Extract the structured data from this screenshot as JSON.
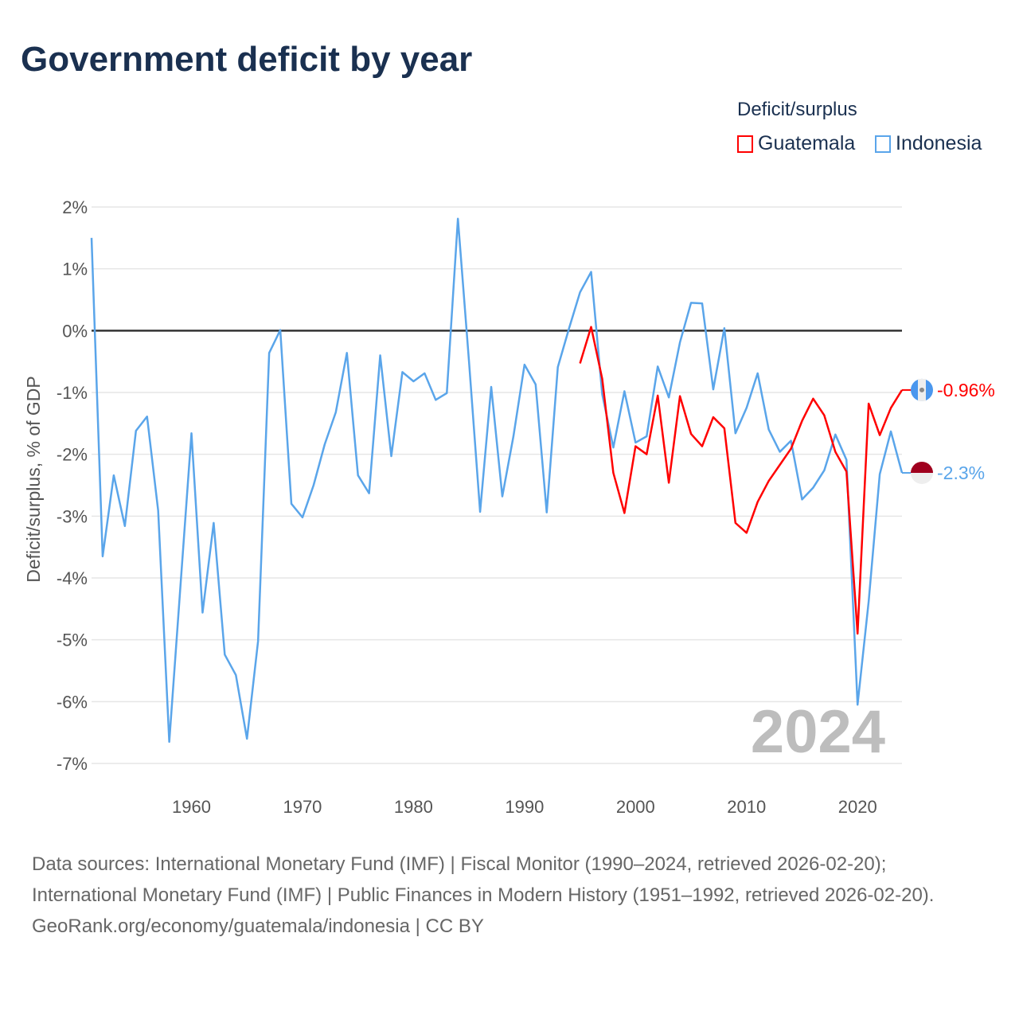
{
  "title": "Government deficit by year",
  "legend": {
    "title": "Deficit/surplus"
  },
  "year_watermark": "2024",
  "sources": "Data sources: International Monetary Fund (IMF) | Fiscal Monitor (1990–2024, retrieved 2026-02-20); International Monetary Fund (IMF) | Public Finances in Modern History (1951–1992, retrieved 2026-02-20).",
  "credit": "GeoRank.org/economy/guatemala/indonesia | CC BY",
  "chart_data": {
    "type": "line",
    "title": "Government deficit by year",
    "ylabel": "Deficit/surplus, % of GDP",
    "xlabel": "",
    "xlim": [
      1951,
      2024
    ],
    "ylim": [
      -7,
      2
    ],
    "xticks": [
      1960,
      1970,
      1980,
      1990,
      2000,
      2010,
      2020
    ],
    "yticks": [
      2,
      1,
      0,
      -1,
      -2,
      -3,
      -4,
      -5,
      -6,
      -7
    ],
    "ytick_labels": [
      "2%",
      "1%",
      "0%",
      "-1%",
      "-2%",
      "-3%",
      "-4%",
      "-5%",
      "-6%",
      "-7%"
    ],
    "legend_position": "top-right",
    "grid": true,
    "series": [
      {
        "name": "Guatemala",
        "color": "#ff0000",
        "end_label": "-0.96%",
        "start_year": 1995,
        "values": [
          -0.53,
          0.06,
          -0.78,
          -2.3,
          -2.95,
          -1.87,
          -2.0,
          -1.05,
          -2.46,
          -1.06,
          -1.67,
          -1.87,
          -1.4,
          -1.58,
          -3.11,
          -3.27,
          -2.77,
          -2.43,
          -2.17,
          -1.91,
          -1.46,
          -1.1,
          -1.37,
          -1.96,
          -2.28,
          -4.9,
          -1.18,
          -1.69,
          -1.25,
          -0.96
        ]
      },
      {
        "name": "Indonesia",
        "color": "#5aa5ea",
        "end_label": "-2.3%",
        "start_year": 1951,
        "values": [
          1.5,
          -3.65,
          -2.34,
          -3.16,
          -1.62,
          -1.39,
          -2.91,
          -6.65,
          -4.15,
          -1.66,
          -4.56,
          -3.11,
          -5.24,
          -5.57,
          -6.6,
          -5.02,
          -0.36,
          0.01,
          -2.8,
          -3.02,
          -2.5,
          -1.84,
          -1.32,
          -0.36,
          -2.34,
          -2.63,
          -0.4,
          -2.03,
          -0.67,
          -0.82,
          -0.69,
          -1.12,
          -1.01,
          1.81,
          -0.5,
          -2.93,
          -0.91,
          -2.68,
          -1.71,
          -0.55,
          -0.87,
          -2.94,
          -0.59,
          0.03,
          0.62,
          0.95,
          -1.03,
          -1.89,
          -0.98,
          -1.81,
          -1.71,
          -0.58,
          -1.08,
          -0.19,
          0.45,
          0.44,
          -0.95,
          0.04,
          -1.66,
          -1.25,
          -0.69,
          -1.6,
          -1.96,
          -1.78,
          -2.73,
          -2.54,
          -2.26,
          -1.68,
          -2.09,
          -6.05,
          -4.38,
          -2.32,
          -1.63,
          -2.3
        ]
      }
    ]
  }
}
